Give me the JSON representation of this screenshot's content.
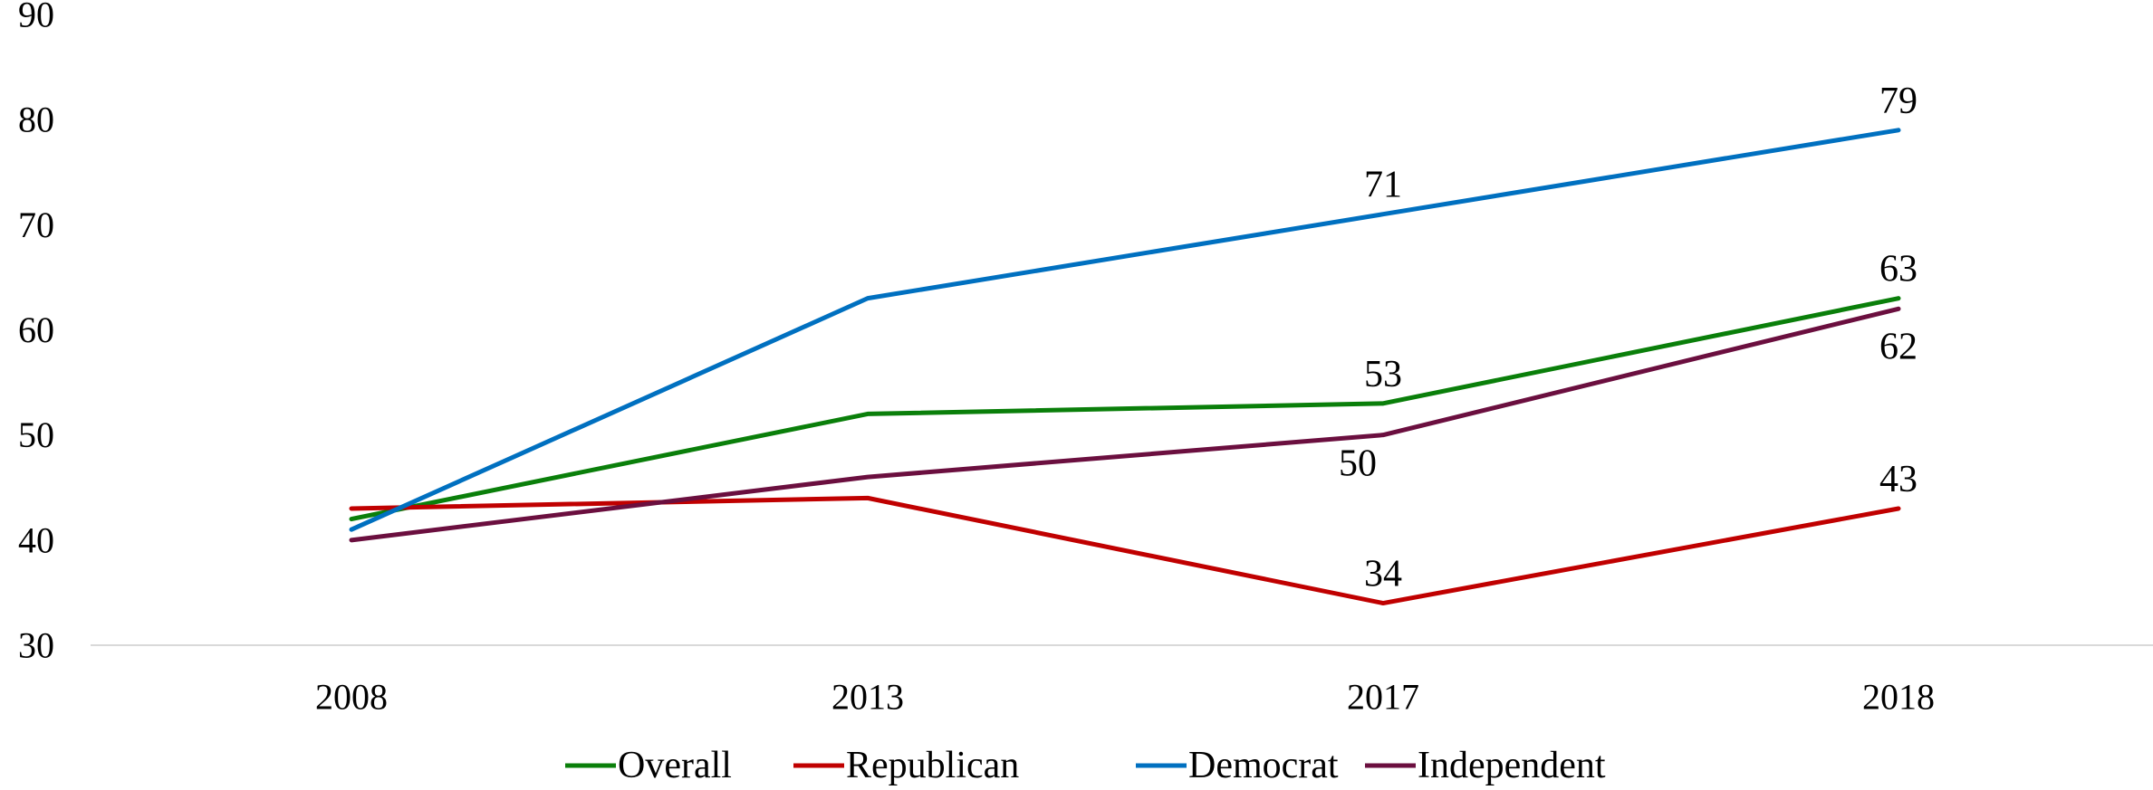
{
  "chart_data": {
    "type": "line",
    "title": "",
    "xlabel": "",
    "ylabel": "",
    "x": [
      "2008",
      "2013",
      "2017",
      "2018"
    ],
    "ylim": [
      30,
      90
    ],
    "yticks": [
      30,
      40,
      50,
      60,
      70,
      80,
      90
    ],
    "grid": false,
    "legend_position": "bottom",
    "series": [
      {
        "name": "Overall",
        "color": "#0a7f0a",
        "values": [
          42,
          52,
          53,
          63
        ]
      },
      {
        "name": "Republican",
        "color": "#c00000",
        "values": [
          43,
          44,
          34,
          43
        ]
      },
      {
        "name": "Democrat",
        "color": "#0070c0",
        "values": [
          41,
          63,
          71,
          79
        ]
      },
      {
        "name": "Independent",
        "color": "#6b0f3f",
        "values": [
          40,
          46,
          50,
          62
        ]
      }
    ],
    "data_labels": [
      {
        "series": "Democrat",
        "x": "2017",
        "value": "71"
      },
      {
        "series": "Democrat",
        "x": "2018",
        "value": "79"
      },
      {
        "series": "Overall",
        "x": "2017",
        "value": "53"
      },
      {
        "series": "Overall",
        "x": "2018",
        "value": "63"
      },
      {
        "series": "Independent",
        "x": "2017",
        "value": "50"
      },
      {
        "series": "Independent",
        "x": "2018",
        "value": "62"
      },
      {
        "series": "Republican",
        "x": "2017",
        "value": "34"
      },
      {
        "series": "Republican",
        "x": "2018",
        "value": "43"
      }
    ]
  }
}
